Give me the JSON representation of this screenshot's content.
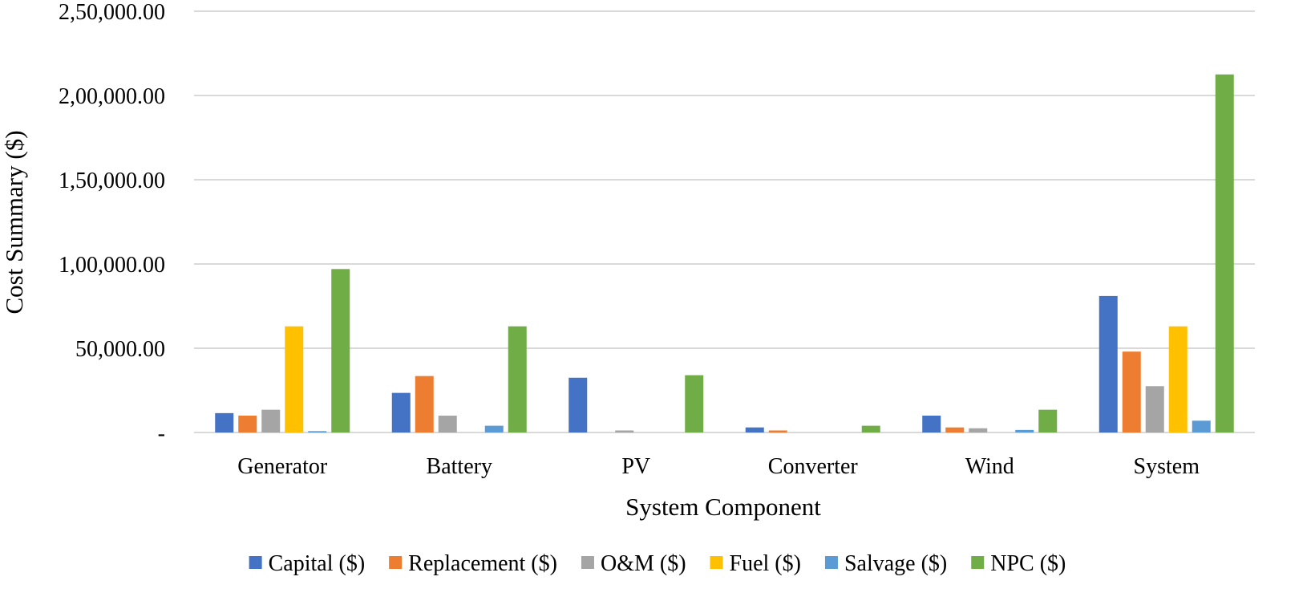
{
  "chart_data": {
    "type": "bar",
    "title": "",
    "xlabel": "System Component",
    "ylabel": "Cost Summary ($)",
    "categories": [
      "Generator",
      "Battery",
      "PV",
      "Converter",
      "Wind",
      "System"
    ],
    "yticks": [
      0,
      50000,
      100000,
      150000,
      200000,
      250000
    ],
    "ytick_labels": [
      "-",
      "50,000.00",
      "1,00,000.00",
      "1,50,000.00",
      "2,00,000.00",
      "2,50,000.00"
    ],
    "ylim": [
      0,
      250000
    ],
    "grid": true,
    "legend_position": "bottom",
    "series": [
      {
        "name": "Capital ($)",
        "color": "#4472C4",
        "values": [
          11500,
          23500,
          32500,
          3000,
          10000,
          81000
        ]
      },
      {
        "name": "Replacement ($)",
        "color": "#ED7D31",
        "values": [
          10000,
          33500,
          0,
          1200,
          3000,
          48000
        ]
      },
      {
        "name": "O&M ($)",
        "color": "#A5A5A5",
        "values": [
          13500,
          10000,
          1200,
          0,
          2500,
          27500
        ]
      },
      {
        "name": "Fuel ($)",
        "color": "#FFC000",
        "values": [
          63000,
          0,
          0,
          0,
          0,
          63000
        ]
      },
      {
        "name": "Salvage ($)",
        "color": "#5B9BD5",
        "values": [
          800,
          4000,
          0,
          0,
          1500,
          7000
        ]
      },
      {
        "name": "NPC ($)",
        "color": "#70AD47",
        "values": [
          97000,
          63000,
          34000,
          4000,
          13500,
          212500
        ]
      }
    ]
  }
}
